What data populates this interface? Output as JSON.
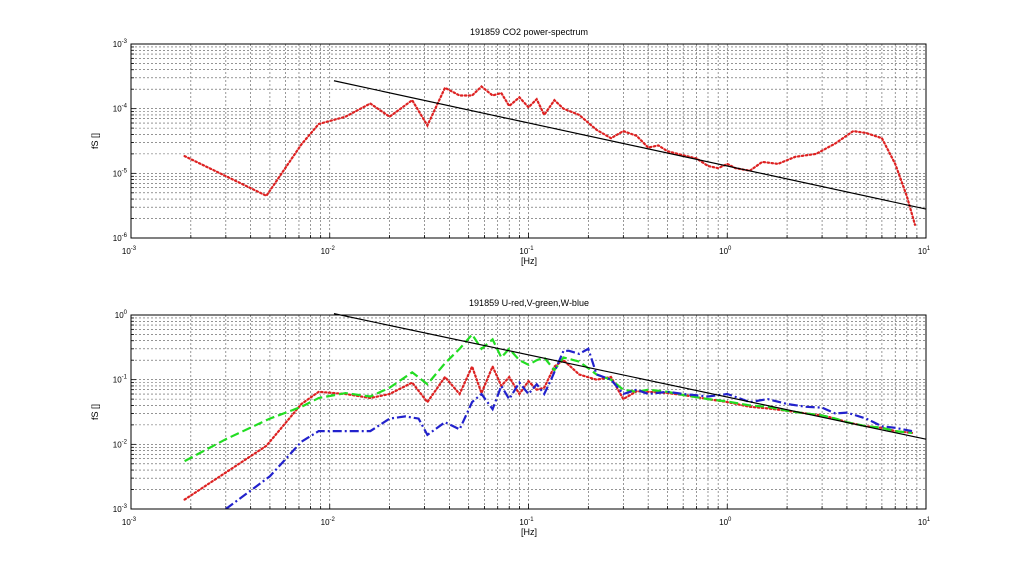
{
  "chart_data": [
    {
      "type": "line",
      "title": "191859 CO2 power-spectrum",
      "xlabel": "[Hz]",
      "ylabel": "fS []",
      "xscale": "log",
      "yscale": "log",
      "xlim": [
        0.001,
        10
      ],
      "ylim": [
        1e-06,
        0.001
      ],
      "grid": true,
      "x_ticks": [
        {
          "base": "10",
          "exp": "-3"
        },
        {
          "base": "10",
          "exp": "-2"
        },
        {
          "base": "10",
          "exp": "-1"
        },
        {
          "base": "10",
          "exp": "0"
        },
        {
          "base": "10",
          "exp": "1"
        }
      ],
      "y_ticks": [
        {
          "base": "10",
          "exp": "-6"
        },
        {
          "base": "10",
          "exp": "-5"
        },
        {
          "base": "10",
          "exp": "-4"
        },
        {
          "base": "10",
          "exp": "-3"
        }
      ],
      "series": [
        {
          "color": "#dd2222",
          "style": "dotted",
          "x": [
            0.00186,
            0.0048,
            0.0072,
            0.0088,
            0.012,
            0.016,
            0.02,
            0.026,
            0.031,
            0.038,
            0.045,
            0.052,
            0.058,
            0.066,
            0.073,
            0.08,
            0.09,
            0.1,
            0.11,
            0.12,
            0.135,
            0.15,
            0.18,
            0.22,
            0.26,
            0.3,
            0.35,
            0.4,
            0.45,
            0.5,
            0.6,
            0.7,
            0.8,
            0.9,
            1.0,
            1.1,
            1.3,
            1.5,
            1.8,
            2.2,
            2.8,
            3.5,
            4.3,
            5.0,
            6.0,
            7.0,
            8.0,
            8.8
          ],
          "y": [
            1.85e-05,
            4.5e-06,
            2.8e-05,
            5.8e-05,
            7.5e-05,
            0.00012,
            7.5e-05,
            0.000135,
            5.5e-05,
            0.00021,
            0.00016,
            0.00016,
            0.00022,
            0.00016,
            0.000175,
            0.00011,
            0.00015,
            0.000105,
            0.00014,
            8e-05,
            0.000135,
            0.0001,
            8e-05,
            4.7e-05,
            3.5e-05,
            4.5e-05,
            3.8e-05,
            2.5e-05,
            2.7e-05,
            2.2e-05,
            1.9e-05,
            1.7e-05,
            1.3e-05,
            1.2e-05,
            1.4e-05,
            1.2e-05,
            1.1e-05,
            1.5e-05,
            1.4e-05,
            1.8e-05,
            2e-05,
            2.9e-05,
            4.5e-05,
            4.2e-05,
            3.5e-05,
            1.4e-05,
            4.5e-06,
            1.6e-06
          ]
        }
      ],
      "fit_line": {
        "color": "#000000",
        "x": [
          0.0105,
          10
        ],
        "y": [
          0.00027,
          2.8e-06
        ]
      }
    },
    {
      "type": "line",
      "title": "191859  U-red,V-green,W-blue",
      "xlabel": "[Hz]",
      "ylabel": "fS []",
      "xscale": "log",
      "yscale": "log",
      "xlim": [
        0.001,
        10
      ],
      "ylim": [
        0.001,
        1
      ],
      "grid": true,
      "x_ticks": [
        {
          "base": "10",
          "exp": "-3"
        },
        {
          "base": "10",
          "exp": "-2"
        },
        {
          "base": "10",
          "exp": "-1"
        },
        {
          "base": "10",
          "exp": "0"
        },
        {
          "base": "10",
          "exp": "1"
        }
      ],
      "y_ticks": [
        {
          "base": "10",
          "exp": "-3"
        },
        {
          "base": "10",
          "exp": "-2"
        },
        {
          "base": "10",
          "exp": "-1"
        },
        {
          "base": "10",
          "exp": "0"
        }
      ],
      "series": [
        {
          "color": "#dd2222",
          "style": "dotted",
          "x": [
            0.00186,
            0.0048,
            0.0072,
            0.0088,
            0.012,
            0.016,
            0.02,
            0.026,
            0.031,
            0.038,
            0.045,
            0.052,
            0.058,
            0.066,
            0.073,
            0.08,
            0.09,
            0.1,
            0.11,
            0.12,
            0.135,
            0.15,
            0.18,
            0.22,
            0.26,
            0.3,
            0.35,
            0.4,
            0.5,
            0.6,
            0.8,
            1.0,
            1.3,
            1.6,
            2.0,
            2.5,
            3.0,
            3.5,
            4.0,
            5.0,
            6.0,
            7.0,
            8.5
          ],
          "y": [
            0.0014,
            0.0095,
            0.042,
            0.065,
            0.06,
            0.052,
            0.06,
            0.09,
            0.045,
            0.11,
            0.06,
            0.16,
            0.062,
            0.16,
            0.08,
            0.11,
            0.06,
            0.095,
            0.07,
            0.075,
            0.16,
            0.2,
            0.12,
            0.1,
            0.11,
            0.05,
            0.066,
            0.065,
            0.062,
            0.058,
            0.05,
            0.045,
            0.038,
            0.036,
            0.033,
            0.03,
            0.028,
            0.025,
            0.022,
            0.019,
            0.018,
            0.016,
            0.015
          ]
        },
        {
          "color": "#22dd22",
          "style": "dashed",
          "x": [
            0.00186,
            0.003,
            0.005,
            0.0072,
            0.0088,
            0.012,
            0.016,
            0.02,
            0.026,
            0.031,
            0.038,
            0.045,
            0.052,
            0.058,
            0.066,
            0.073,
            0.08,
            0.09,
            0.1,
            0.11,
            0.12,
            0.135,
            0.15,
            0.18,
            0.22,
            0.26,
            0.3,
            0.35,
            0.4,
            0.5,
            0.6,
            0.8,
            1.0,
            1.3,
            1.6,
            2.0,
            2.5,
            3.0,
            3.5,
            4.0,
            5.0,
            6.0,
            7.0,
            8.5
          ],
          "y": [
            0.0055,
            0.012,
            0.025,
            0.038,
            0.052,
            0.062,
            0.055,
            0.075,
            0.13,
            0.085,
            0.18,
            0.3,
            0.5,
            0.3,
            0.42,
            0.22,
            0.3,
            0.2,
            0.17,
            0.2,
            0.22,
            0.14,
            0.22,
            0.19,
            0.12,
            0.1,
            0.07,
            0.065,
            0.07,
            0.065,
            0.058,
            0.05,
            0.046,
            0.04,
            0.038,
            0.033,
            0.03,
            0.028,
            0.025,
            0.022,
            0.019,
            0.018,
            0.016,
            0.015
          ]
        },
        {
          "color": "#2222cc",
          "style": "dashdot",
          "x": [
            0.003,
            0.005,
            0.0072,
            0.0088,
            0.012,
            0.016,
            0.02,
            0.024,
            0.028,
            0.031,
            0.038,
            0.045,
            0.052,
            0.058,
            0.066,
            0.073,
            0.08,
            0.09,
            0.1,
            0.11,
            0.12,
            0.13,
            0.15,
            0.16,
            0.18,
            0.2,
            0.22,
            0.26,
            0.3,
            0.35,
            0.4,
            0.5,
            0.6,
            0.8,
            1.0,
            1.3,
            1.6,
            2.0,
            2.5,
            3.0,
            3.5,
            4.0,
            5.0,
            6.0,
            7.0,
            8.5
          ],
          "y": [
            0.001,
            0.0032,
            0.011,
            0.016,
            0.016,
            0.016,
            0.025,
            0.027,
            0.025,
            0.014,
            0.022,
            0.017,
            0.045,
            0.06,
            0.035,
            0.08,
            0.05,
            0.09,
            0.06,
            0.085,
            0.06,
            0.1,
            0.28,
            0.28,
            0.25,
            0.3,
            0.12,
            0.1,
            0.06,
            0.07,
            0.06,
            0.065,
            0.06,
            0.055,
            0.06,
            0.045,
            0.05,
            0.042,
            0.038,
            0.037,
            0.03,
            0.031,
            0.025,
            0.019,
            0.018,
            0.016
          ]
        }
      ],
      "fit_line": {
        "color": "#000000",
        "x": [
          0.0105,
          10
        ],
        "y": [
          1.05,
          0.012
        ]
      }
    }
  ]
}
